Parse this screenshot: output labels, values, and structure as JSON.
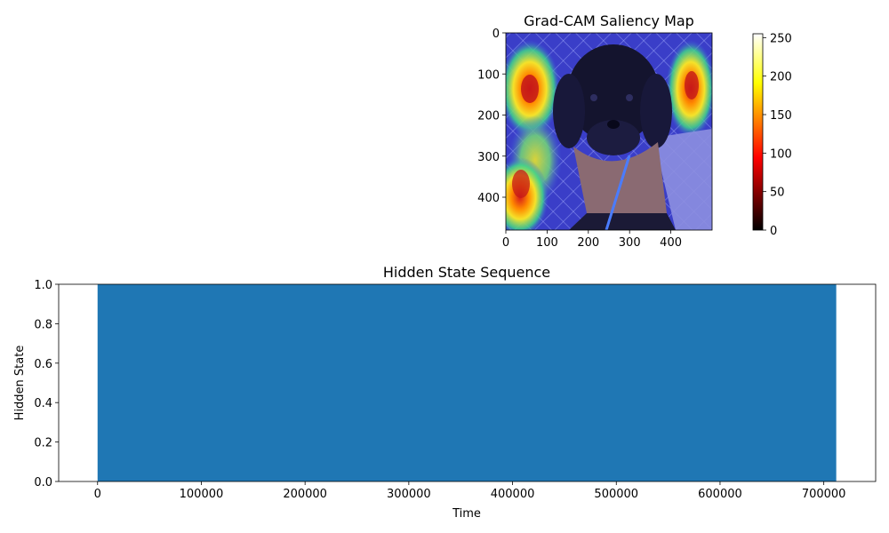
{
  "chart_data": [
    {
      "type": "heatmap",
      "title": "Grad-CAM Saliency Map",
      "xlabel": "",
      "ylabel": "",
      "image_extent_x": [
        0,
        500
      ],
      "image_extent_y": [
        480,
        0
      ],
      "x_ticks": [
        0,
        100,
        200,
        300,
        400
      ],
      "y_ticks": [
        0,
        100,
        200,
        300,
        400
      ],
      "colormap": "jet overlay on photo",
      "colorbar": {
        "colormap": "hot",
        "range": [
          0,
          255
        ],
        "ticks": [
          0,
          50,
          100,
          150,
          200,
          250
        ]
      },
      "image_content": "photo of a black puppy wearing a tan scarf and blue leash in front of a chain-link fence",
      "hotspots": [
        {
          "x": 55,
          "y": 125,
          "intensity": "high"
        },
        {
          "x": 450,
          "y": 125,
          "intensity": "high"
        },
        {
          "x": 40,
          "y": 360,
          "intensity": "high"
        },
        {
          "x": 70,
          "y": 240,
          "intensity": "medium"
        }
      ]
    },
    {
      "type": "bar",
      "title": "Hidden State Sequence",
      "xlabel": "Time",
      "ylabel": "Hidden State",
      "x_range": [
        0,
        712000
      ],
      "value": 1.0,
      "xlim": [
        -37500,
        750000
      ],
      "ylim": [
        0,
        1
      ],
      "x_ticks": [
        0,
        100000,
        200000,
        300000,
        400000,
        500000,
        600000,
        700000
      ],
      "y_ticks": [
        0.0,
        0.2,
        0.4,
        0.6,
        0.8,
        1.0
      ],
      "color": "#1f77b4"
    }
  ]
}
